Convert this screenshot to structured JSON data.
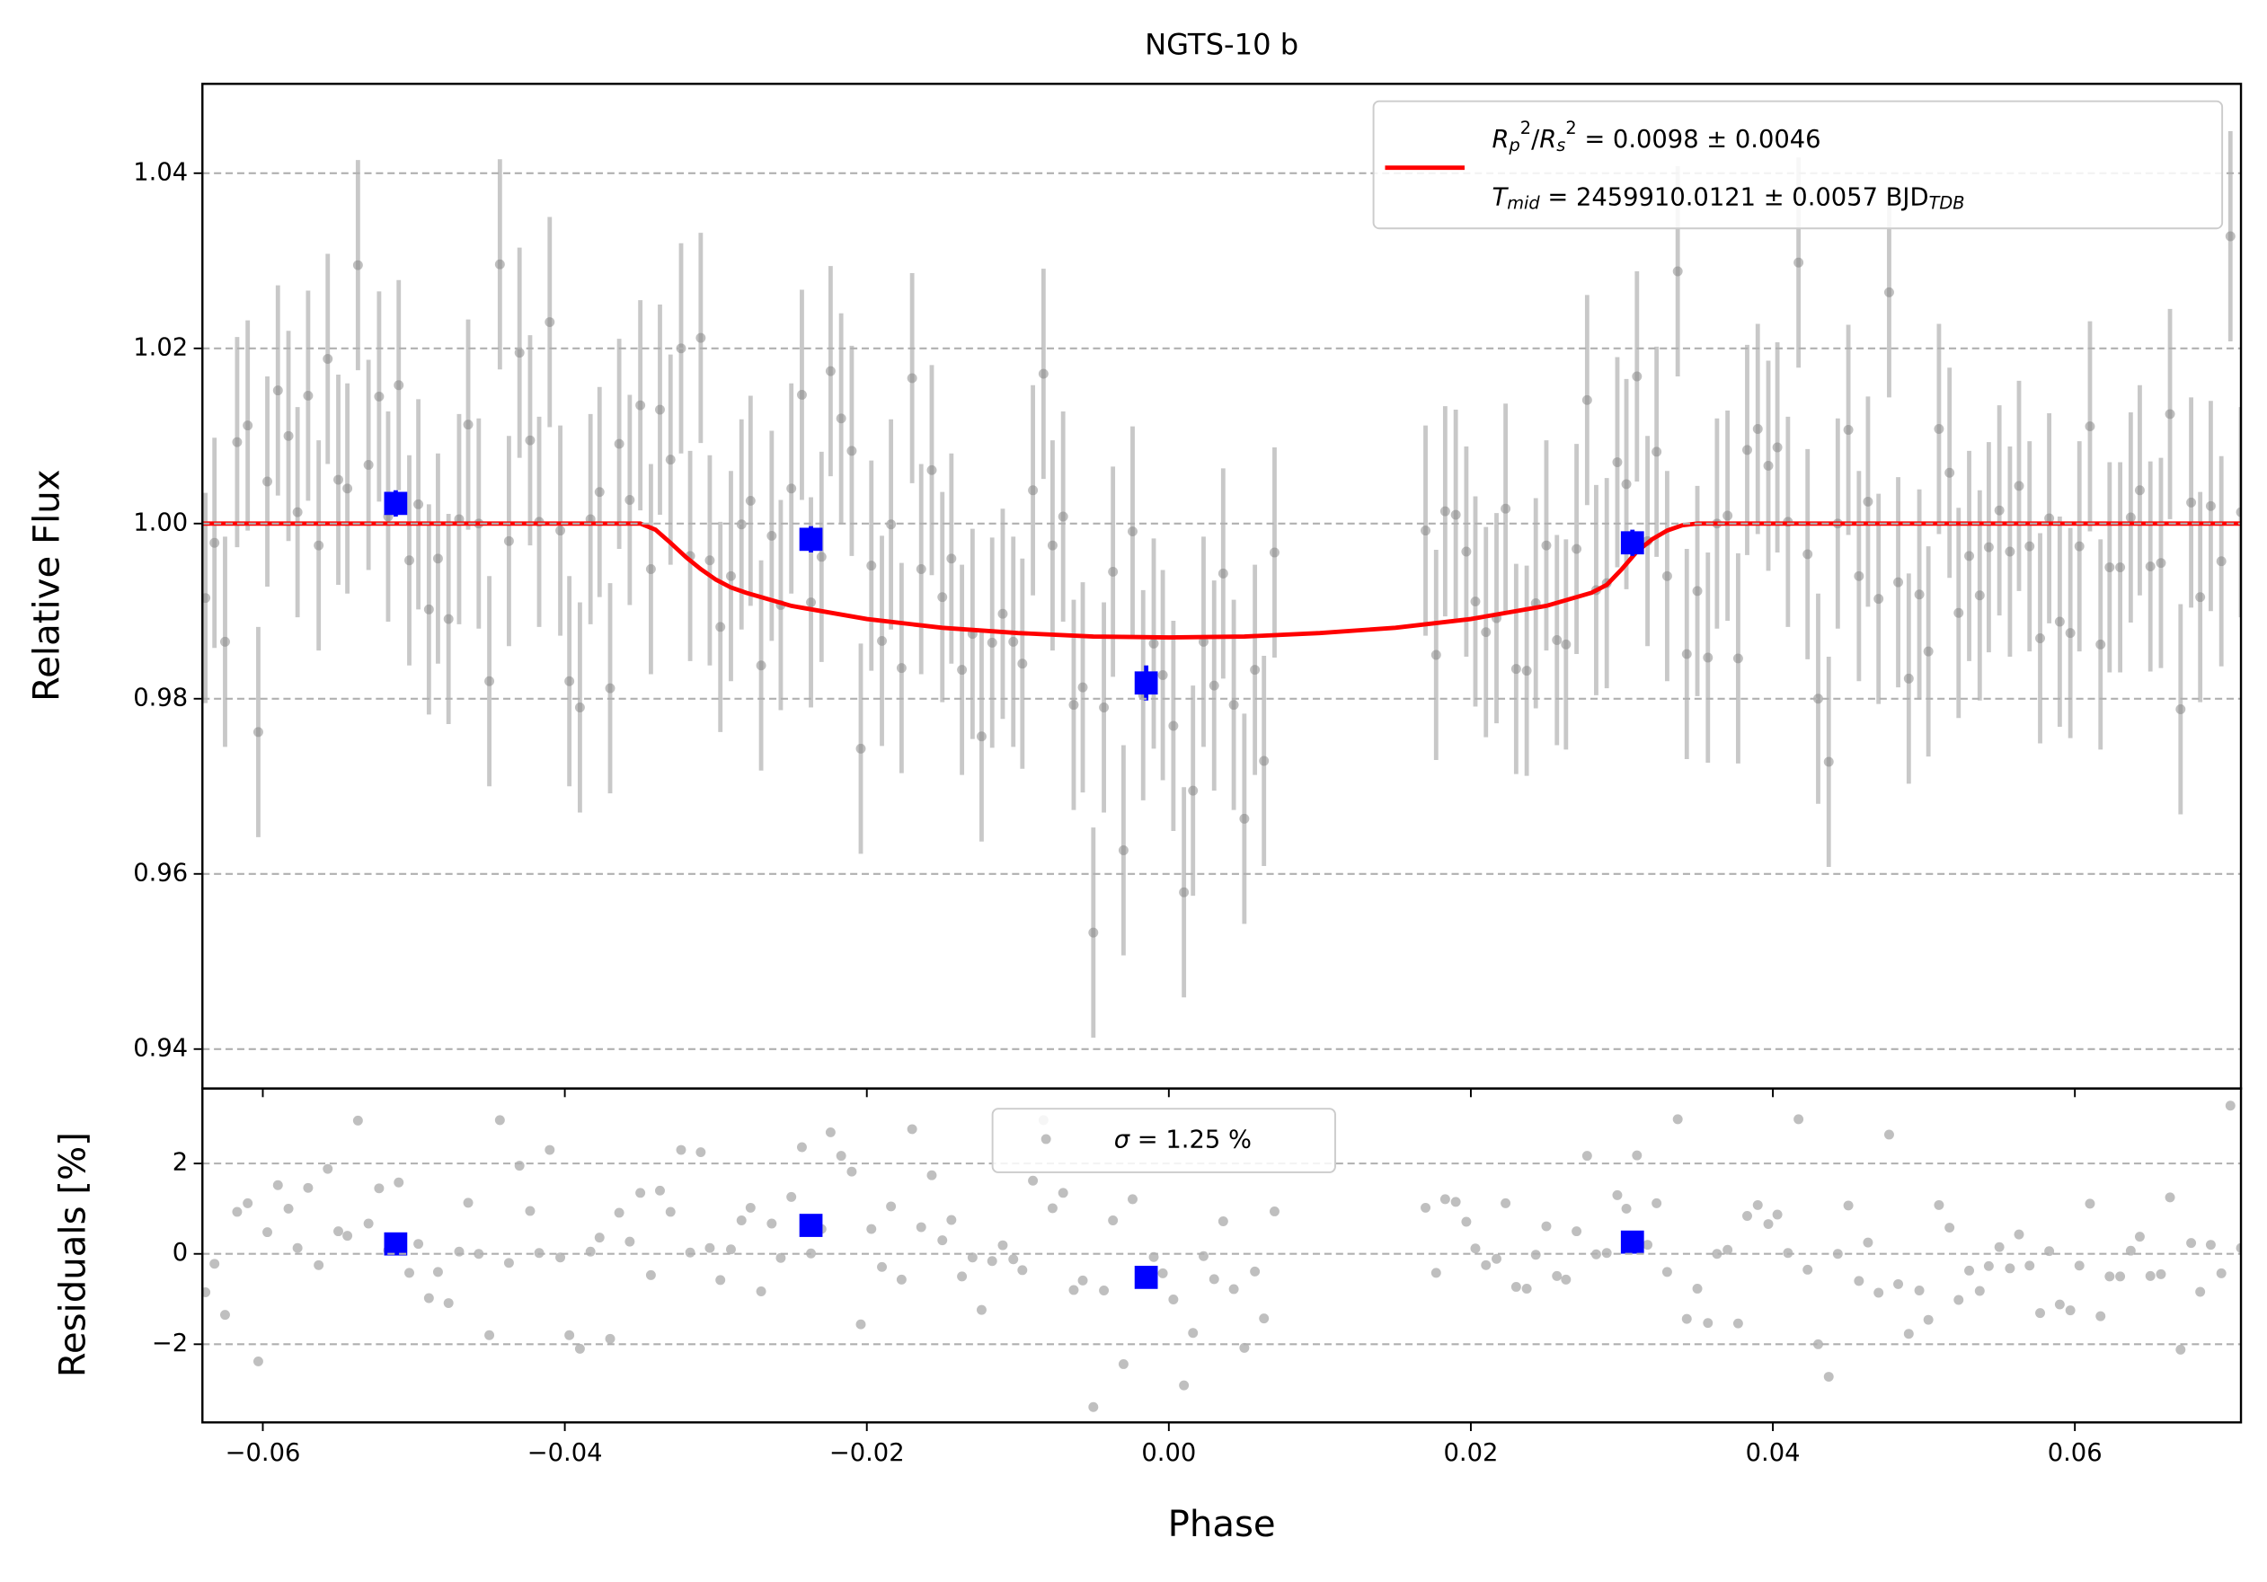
{
  "chart_data": [
    {
      "type": "scatter",
      "title": "NGTS-10 b",
      "ylabel": "Relative Flux",
      "xlim": [
        -0.064,
        0.071
      ],
      "ylim": [
        0.9355,
        1.0502
      ],
      "yticks": [
        0.94,
        0.96,
        0.98,
        {
          "value": 1.0,
          "label": "1.00"
        },
        1.02,
        1.04
      ],
      "grid": true,
      "legend": "upper right",
      "color": "#808080",
      "yerr": 0.012,
      "x": [
        -0.0638,
        -0.0632,
        -0.0625,
        -0.0617,
        -0.061,
        -0.0603,
        -0.0597,
        -0.059,
        -0.0583,
        -0.0577,
        -0.057,
        -0.0563,
        -0.0557,
        -0.055,
        -0.0544,
        -0.0537,
        -0.053,
        -0.0523,
        -0.0517,
        -0.051,
        -0.0503,
        -0.0497,
        -0.049,
        -0.0484,
        -0.0477,
        -0.047,
        -0.0464,
        -0.0457,
        -0.045,
        -0.0443,
        -0.0437,
        -0.043,
        -0.0423,
        -0.0417,
        -0.041,
        -0.0403,
        -0.0397,
        -0.039,
        -0.0383,
        -0.0377,
        -0.037,
        -0.0364,
        -0.0357,
        -0.035,
        -0.0343,
        -0.0337,
        -0.033,
        -0.0323,
        -0.0317,
        -0.031,
        -0.0304,
        -0.0297,
        -0.029,
        -0.0283,
        -0.0277,
        -0.027,
        -0.0263,
        -0.0257,
        -0.025,
        -0.0243,
        -0.0237,
        -0.023,
        -0.0224,
        -0.0217,
        -0.021,
        -0.0204,
        -0.0197,
        -0.019,
        -0.0184,
        -0.0177,
        -0.017,
        -0.0164,
        -0.0157,
        -0.015,
        -0.0144,
        -0.0137,
        -0.013,
        -0.0124,
        -0.0117,
        -0.011,
        -0.0103,
        -0.0097,
        -0.009,
        -0.0083,
        -0.0077,
        -0.007,
        -0.0063,
        -0.0057,
        -0.005,
        -0.0043,
        -0.0037,
        -0.003,
        -0.0024,
        -0.0017,
        -0.001,
        -0.0004,
        0.0003,
        0.001,
        0.0016,
        0.0023,
        0.003,
        0.0036,
        0.0043,
        0.005,
        0.0057,
        0.0063,
        0.007,
        0.017,
        0.0177,
        0.0183,
        0.019,
        0.0197,
        0.0203,
        0.021,
        0.0217,
        0.0223,
        0.023,
        0.0237,
        0.0243,
        0.025,
        0.0257,
        0.0263,
        0.027,
        0.0277,
        0.0283,
        0.029,
        0.0297,
        0.0303,
        0.031,
        0.0317,
        0.0323,
        0.033,
        0.0337,
        0.0343,
        0.035,
        0.0357,
        0.0363,
        0.037,
        0.0377,
        0.0383,
        0.039,
        0.0397,
        0.0403,
        0.041,
        0.0417,
        0.0423,
        0.043,
        0.0437,
        0.0443,
        0.045,
        0.0457,
        0.0463,
        0.047,
        0.0477,
        0.0483,
        0.049,
        0.0497,
        0.0503,
        0.051,
        0.0517,
        0.0523,
        0.053,
        0.0537,
        0.0543,
        0.055,
        0.0557,
        0.0563,
        0.057,
        0.0577,
        0.0583,
        0.059,
        0.0597,
        0.0603,
        0.061,
        0.0617,
        0.0623,
        0.063,
        0.0637,
        0.0643,
        0.065,
        0.0657,
        0.0663,
        0.067,
        0.0677,
        0.0683,
        0.069,
        0.0697,
        0.0703,
        0.071
      ],
      "values": [
        0.9915,
        0.9978,
        0.9865,
        1.0093,
        1.0112,
        0.9762,
        1.0048,
        1.0152,
        1.01,
        1.0013,
        1.0146,
        0.9975,
        1.0188,
        1.005,
        1.004,
        1.0295,
        1.0067,
        1.0145,
        1.0008,
        1.0158,
        0.9958,
        1.0022,
        0.9902,
        0.996,
        0.9891,
        1.0005,
        1.0113,
        1.0,
        0.982,
        1.0296,
        0.998,
        1.0195,
        1.0095,
        1.0002,
        1.023,
        0.9992,
        0.982,
        0.979,
        1.0005,
        1.0036,
        0.9812,
        1.0091,
        1.0027,
        1.0135,
        0.9948,
        1.013,
        1.0073,
        1.02,
        0.9963,
        1.0212,
        0.9958,
        0.9882,
        0.994,
        0.9999,
        1.0026,
        0.9838,
        0.9986,
        0.9907,
        1.004,
        1.0147,
        0.991,
        0.9962,
        1.0174,
        1.012,
        1.0083,
        0.9743,
        0.9952,
        0.9866,
        0.9999,
        0.9835,
        1.0166,
        0.9948,
        1.0061,
        0.9916,
        0.996,
        0.9833,
        0.9874,
        0.9757,
        0.9864,
        0.9897,
        0.9865,
        0.984,
        1.0038,
        1.0171,
        0.9975,
        1.0008,
        0.9793,
        0.9813,
        0.9533,
        0.979,
        0.9945,
        0.9627,
        0.9991,
        0.9804,
        0.9863,
        0.9827,
        0.9769,
        0.9579,
        0.9695,
        0.9865,
        0.9815,
        0.9943,
        0.9793,
        0.9663,
        0.9833,
        0.9729,
        0.9967,
        0.9992,
        0.985,
        1.0014,
        1.001,
        0.9968,
        0.9911,
        0.9876,
        0.9892,
        1.0017,
        0.9834,
        0.9832,
        0.9909,
        0.9975,
        0.9867,
        0.9862,
        0.9971,
        1.0141,
        0.9924,
        0.9932,
        1.007,
        1.0045,
        1.0168,
        0.998,
        1.0082,
        0.994,
        1.0288,
        0.9851,
        0.9923,
        0.9847,
        1.0,
        1.0009,
        0.9846,
        1.0084,
        1.0108,
        1.0066,
        1.0087,
        1.0002,
        1.0298,
        0.9965,
        0.98,
        0.9728,
        1.0,
        1.0107,
        0.994,
        1.0025,
        0.9914,
        1.0264,
        0.9933,
        0.9823,
        0.9919,
        0.9854,
        1.0108,
        1.0058,
        0.9898,
        0.9963,
        0.9918,
        0.9973,
        1.0015,
        0.9968,
        1.0043,
        0.9974,
        0.9869,
        1.0006,
        0.9888,
        0.9875,
        0.9974,
        1.0111,
        0.9862,
        0.995,
        0.995,
        1.0007,
        1.0038,
        0.9951,
        0.9955,
        1.0125,
        0.9788,
        1.0024,
        0.9916,
        1.002,
        0.9957,
        1.0328,
        1.0013
      ],
      "binned": {
        "color": "#0000ff",
        "x": [
          -0.0512,
          -0.0237,
          -0.0015,
          0.0307
        ],
        "values": [
          1.0023,
          0.9982,
          0.9818,
          0.9978
        ],
        "yerr": [
          0.0015,
          0.0015,
          0.002,
          0.0015
        ]
      },
      "model": {
        "color": "#ff0000",
        "x": [
          -0.064,
          -0.035,
          -0.034,
          -0.033,
          -0.032,
          -0.031,
          -0.03,
          -0.029,
          -0.028,
          -0.025,
          -0.02,
          -0.015,
          -0.01,
          -0.005,
          0.0,
          0.005,
          0.01,
          0.015,
          0.02,
          0.025,
          0.028,
          0.029,
          0.03,
          0.031,
          0.032,
          0.033,
          0.034,
          0.035,
          0.071
        ],
        "values": [
          1.0,
          1.0,
          0.9993,
          0.9978,
          0.9962,
          0.9948,
          0.9936,
          0.9927,
          0.9921,
          0.9906,
          0.9891,
          0.9881,
          0.9875,
          0.9871,
          0.987,
          0.9871,
          0.9875,
          0.9881,
          0.9891,
          0.9906,
          0.9921,
          0.993,
          0.9948,
          0.9968,
          0.9982,
          0.9992,
          0.9998,
          1.0,
          1.0
        ],
        "label": [
          [
            {
              "text": "R",
              "style": "italic"
            },
            {
              "text": "p",
              "style": "sub"
            },
            {
              "text": "2",
              "style": "sup"
            },
            {
              "text": "/",
              "style": "normal"
            },
            {
              "text": "R",
              "style": "italic"
            },
            {
              "text": "s",
              "style": "sub"
            },
            {
              "text": "2",
              "style": "sup"
            },
            {
              "text": " = 0.0098 ± 0.0046",
              "style": "normal"
            }
          ],
          [
            {
              "text": "T",
              "style": "italic"
            },
            {
              "text": "mid",
              "style": "sub"
            },
            {
              "text": " = 2459910.0121 ± 0.0057 BJD",
              "style": "normal"
            },
            {
              "text": "TDB",
              "style": "sub"
            }
          ]
        ]
      }
    },
    {
      "type": "scatter",
      "ylabel": "Residuals [%]",
      "xlabel": "Phase",
      "xlim": [
        -0.064,
        0.071
      ],
      "xticks": [
        {
          "value": -0.06,
          "label": "−0.06"
        },
        {
          "value": -0.04,
          "label": "−0.04"
        },
        {
          "value": -0.02,
          "label": "−0.02"
        },
        {
          "value": 0.0,
          "label": "0.00"
        },
        {
          "value": 0.02,
          "label": "0.02"
        },
        {
          "value": 0.04,
          "label": "0.04"
        },
        {
          "value": 0.06,
          "label": "0.06"
        }
      ],
      "ylim": [
        -3.73,
        3.66
      ],
      "yticks": [
        {
          "value": -2,
          "label": "−2"
        },
        0,
        2
      ],
      "grid": true,
      "legend": "upper center",
      "color": "#808080",
      "label": [
        {
          "text": "σ",
          "style": "italic"
        },
        {
          "text": " = 1.25 %",
          "style": "normal"
        }
      ],
      "values": [
        -0.85,
        -0.22,
        -1.35,
        0.93,
        1.12,
        -2.38,
        0.48,
        1.52,
        1.0,
        0.13,
        1.46,
        -0.25,
        1.88,
        0.5,
        0.4,
        2.95,
        0.67,
        1.45,
        0.08,
        1.58,
        -0.42,
        0.22,
        -0.98,
        -0.4,
        -1.09,
        0.05,
        1.13,
        0.0,
        -1.8,
        2.96,
        -0.2,
        1.95,
        0.95,
        0.02,
        2.3,
        -0.08,
        -1.8,
        -2.1,
        0.05,
        0.36,
        -1.88,
        0.91,
        0.27,
        1.35,
        -0.47,
        1.4,
        0.93,
        2.3,
        0.03,
        2.25,
        0.13,
        -0.58,
        0.1,
        0.74,
        1.02,
        -0.83,
        0.67,
        -0.09,
        1.26,
        2.36,
        0.01,
        0.55,
        2.69,
        2.17,
        1.82,
        -1.56,
        0.55,
        -0.29,
        1.05,
        -0.57,
        2.76,
        0.59,
        1.74,
        0.3,
        0.75,
        -0.5,
        -0.08,
        -1.24,
        -0.16,
        0.19,
        -0.12,
        -0.36,
        1.62,
        2.96,
        1.01,
        1.35,
        -0.8,
        -0.59,
        -3.39,
        -0.81,
        0.74,
        -2.44,
        1.21,
        -0.66,
        -0.07,
        -0.43,
        -1.01,
        -2.91,
        -1.75,
        -0.05,
        -0.56,
        0.72,
        -0.78,
        -2.08,
        -0.39,
        -1.43,
        0.94,
        1.02,
        -0.42,
        1.21,
        1.15,
        0.71,
        0.12,
        -0.25,
        -0.11,
        1.12,
        -0.73,
        -0.77,
        -0.02,
        0.61,
        -0.49,
        -0.57,
        0.5,
        2.17,
        -0.01,
        0.02,
        1.3,
        1.0,
        2.18,
        0.2,
        1.12,
        -0.4,
        2.98,
        -1.44,
        -0.77,
        -1.53,
        0.0,
        0.09,
        -1.54,
        0.84,
        1.08,
        0.66,
        0.87,
        0.02,
        2.98,
        -0.35,
        -2.0,
        -2.72,
        0.0,
        1.07,
        -0.6,
        0.25,
        -0.86,
        2.64,
        -0.67,
        -1.77,
        -0.81,
        -1.46,
        1.08,
        0.58,
        -1.02,
        -0.37,
        -0.82,
        -0.27,
        0.15,
        -0.32,
        0.43,
        -0.26,
        -1.31,
        0.06,
        -1.12,
        -1.25,
        -0.26,
        1.11,
        -1.38,
        -0.5,
        -0.5,
        0.07,
        0.38,
        -0.49,
        -0.45,
        1.25,
        -2.12,
        0.24,
        -0.84,
        0.2,
        -0.43,
        3.28,
        0.13
      ],
      "binned": {
        "color": "#0000ff",
        "values": [
          0.22,
          0.63,
          -0.52,
          0.26
        ]
      }
    }
  ]
}
